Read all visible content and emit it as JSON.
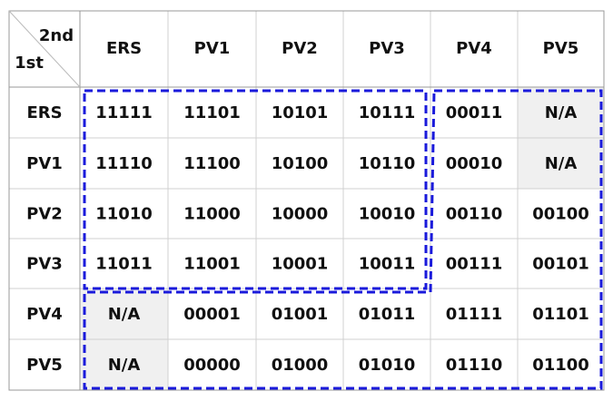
{
  "table": {
    "corner": {
      "column_header": "2nd",
      "row_header": "1st"
    },
    "columns": [
      "ERS",
      "PV1",
      "PV2",
      "PV3",
      "PV4",
      "PV5"
    ],
    "rows": [
      {
        "label": "ERS",
        "cells": [
          "11111",
          "11101",
          "10101",
          "10111",
          "00011",
          "N/A"
        ]
      },
      {
        "label": "PV1",
        "cells": [
          "11110",
          "11100",
          "10100",
          "10110",
          "00010",
          "N/A"
        ]
      },
      {
        "label": "PV2",
        "cells": [
          "11010",
          "11000",
          "10000",
          "10010",
          "00110",
          "00100"
        ]
      },
      {
        "label": "PV3",
        "cells": [
          "11011",
          "11001",
          "10001",
          "10011",
          "00111",
          "00101"
        ]
      },
      {
        "label": "PV4",
        "cells": [
          "N/A",
          "00001",
          "01001",
          "01011",
          "01111",
          "01101"
        ]
      },
      {
        "label": "PV5",
        "cells": [
          "N/A",
          "00000",
          "01000",
          "01010",
          "01110",
          "01100"
        ]
      }
    ]
  }
}
